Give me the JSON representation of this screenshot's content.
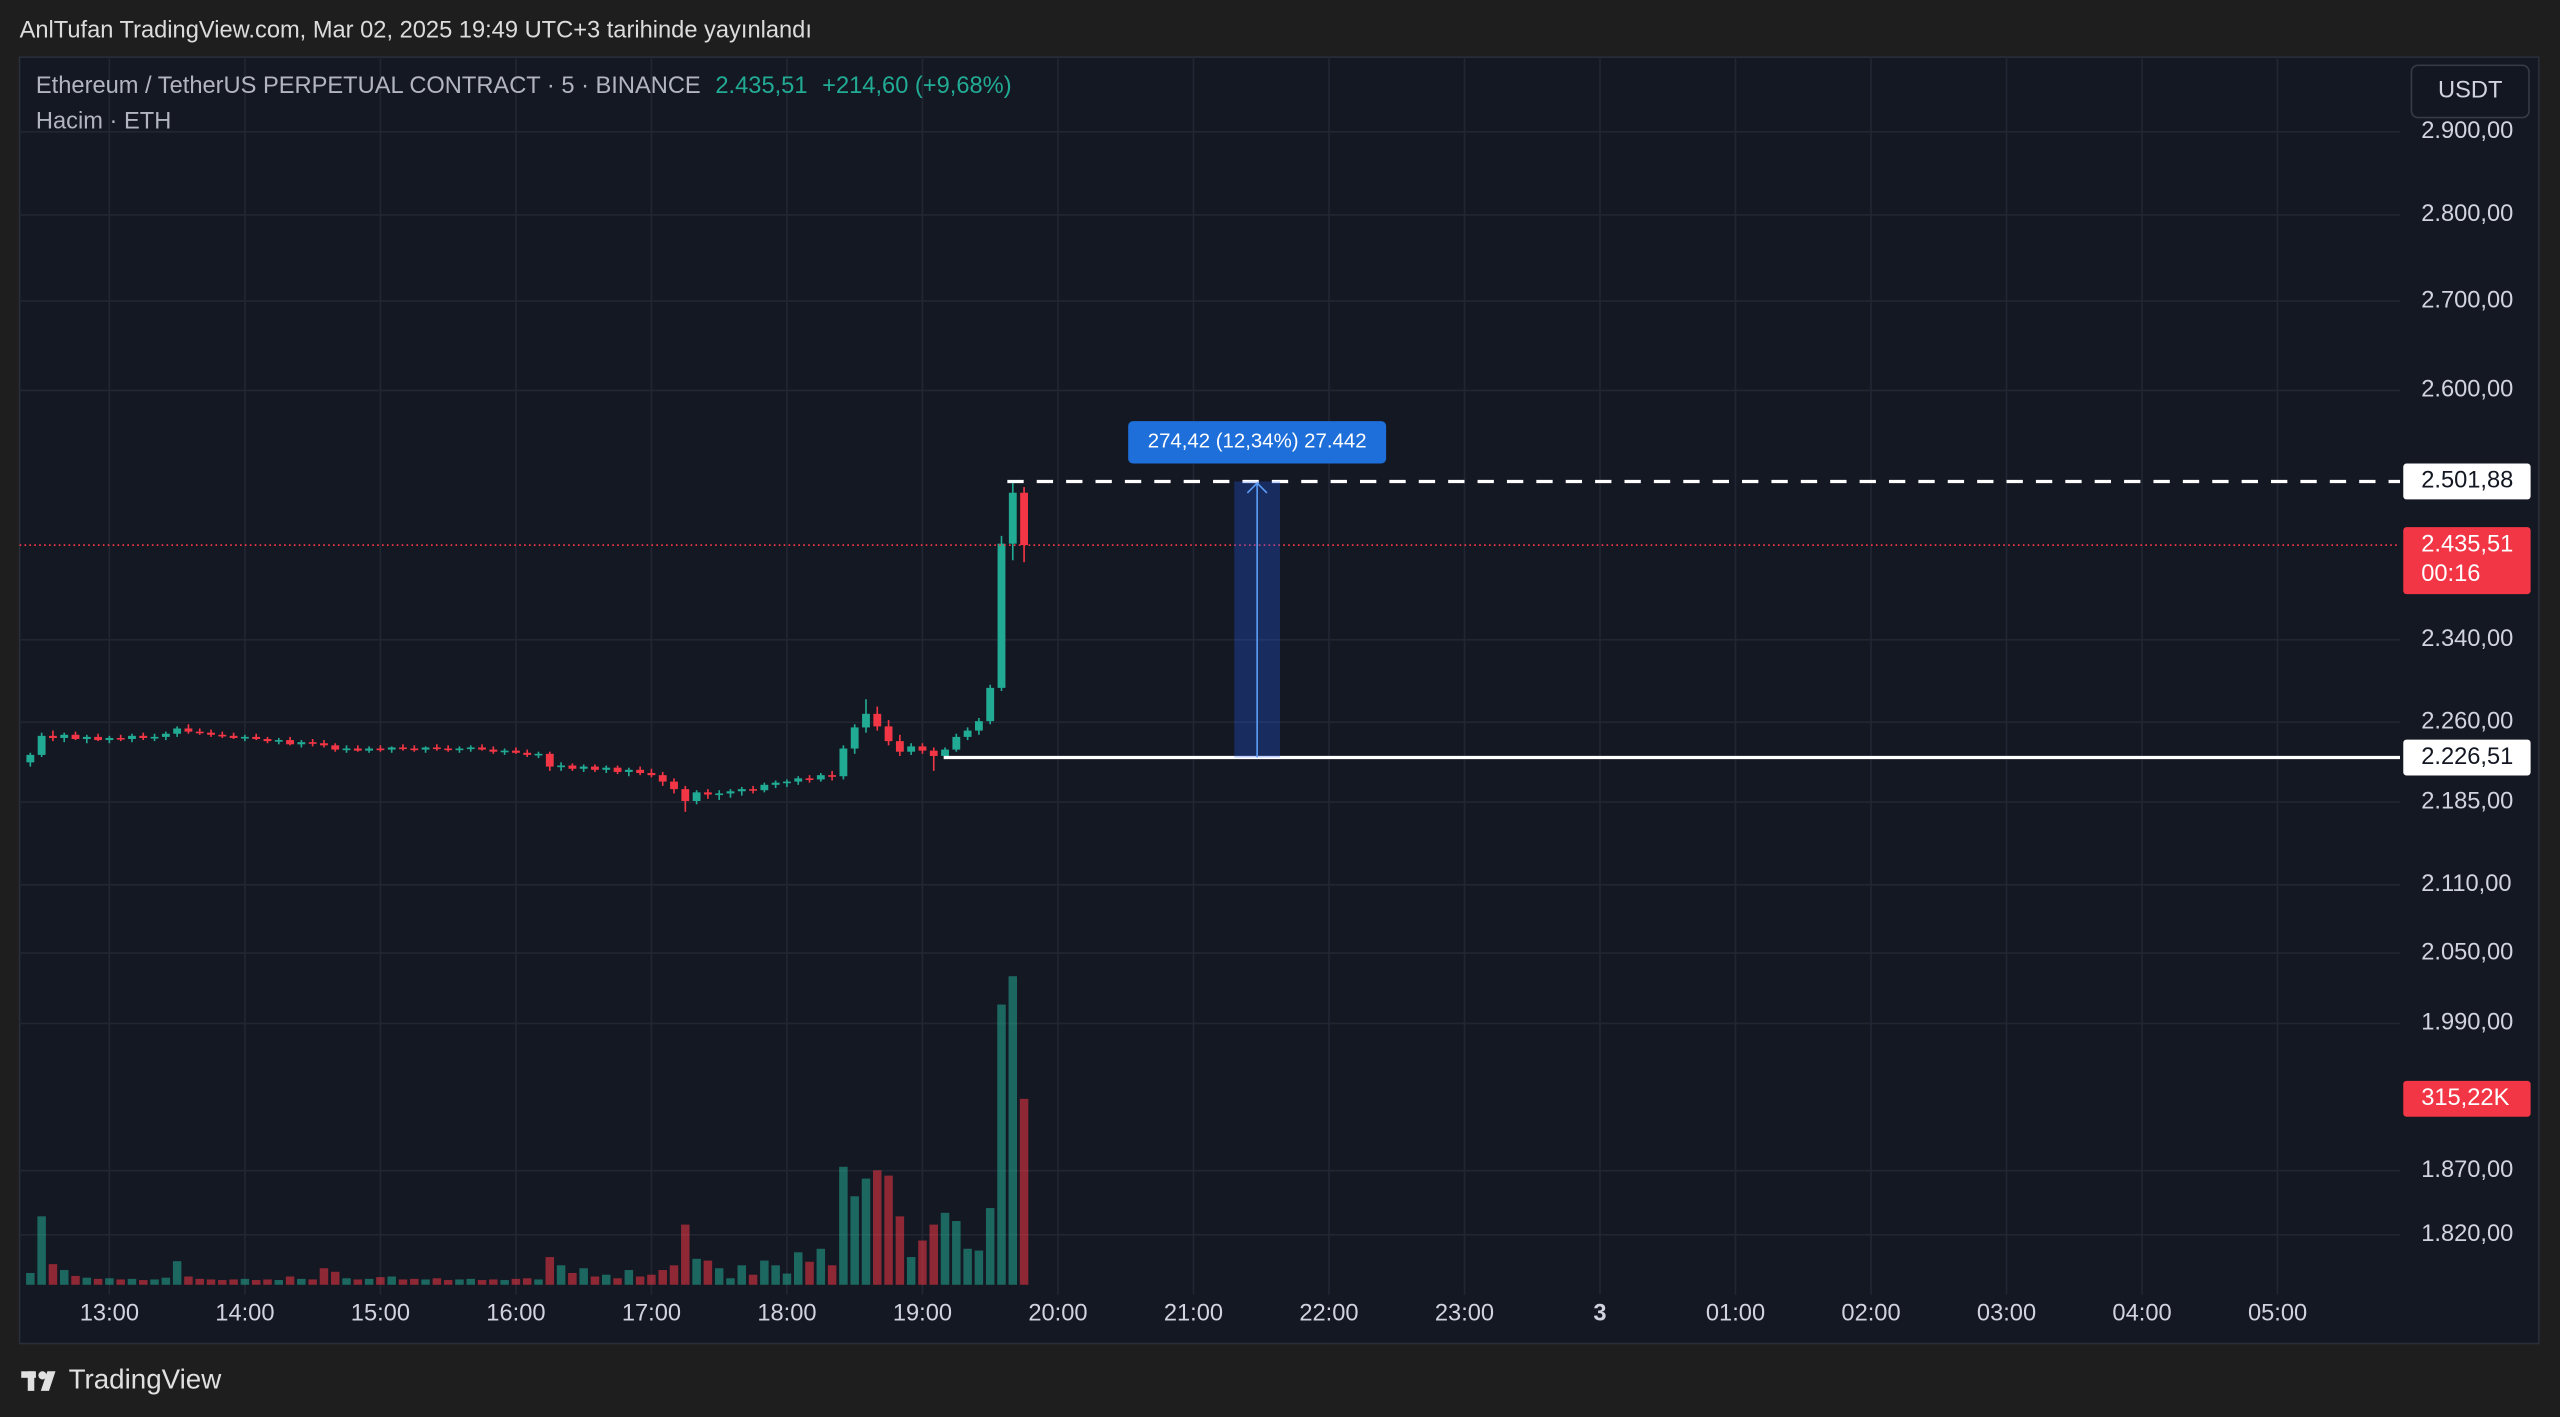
{
  "header": {
    "title": "AnlTufan TradingView.com, Mar 02, 2025 19:49 UTC+3 tarihinde yayınlandı"
  },
  "chart_data": {
    "type": "candlestick",
    "symbol": "Ethereum / TetherUS PERPETUAL CONTRACT · 5 · BINANCE",
    "change": "+214,60 (+9,68%)",
    "volume_legend": "Hacim · ETH",
    "currency": "USDT",
    "x": [
      "12:25",
      "12:30",
      "12:35",
      "12:40",
      "12:45",
      "12:50",
      "12:55",
      "13:00",
      "13:05",
      "13:10",
      "13:15",
      "13:20",
      "13:25",
      "13:30",
      "13:35",
      "13:40",
      "13:45",
      "13:50",
      "13:55",
      "14:00",
      "14:05",
      "14:10",
      "14:15",
      "14:20",
      "14:25",
      "14:30",
      "14:35",
      "14:40",
      "14:45",
      "14:50",
      "14:55",
      "15:00",
      "15:05",
      "15:10",
      "15:15",
      "15:20",
      "15:25",
      "15:30",
      "15:35",
      "15:40",
      "15:45",
      "15:50",
      "15:55",
      "16:00",
      "16:05",
      "16:10",
      "16:15",
      "16:20",
      "16:25",
      "16:30",
      "16:35",
      "16:40",
      "16:45",
      "16:50",
      "16:55",
      "17:00",
      "17:05",
      "17:10",
      "17:15",
      "17:20",
      "17:25",
      "17:30",
      "17:35",
      "17:40",
      "17:45",
      "17:50",
      "17:55",
      "18:00",
      "18:05",
      "18:10",
      "18:15",
      "18:20",
      "18:25",
      "18:30",
      "18:35",
      "18:40",
      "18:45",
      "18:50",
      "18:55",
      "19:00",
      "19:05",
      "19:10",
      "19:15",
      "19:20",
      "19:25",
      "19:30",
      "19:35",
      "19:40",
      "19:45"
    ],
    "open": [
      2222,
      2229,
      2247,
      2245,
      2248,
      2244,
      2246,
      2243,
      2245,
      2244,
      2247,
      2245,
      2246,
      2249,
      2254,
      2251,
      2250,
      2248,
      2247,
      2245,
      2246,
      2244,
      2242,
      2243,
      2239,
      2241,
      2240,
      2238,
      2234,
      2235,
      2233,
      2235,
      2234,
      2236,
      2235,
      2234,
      2236,
      2235,
      2234,
      2235,
      2236,
      2234,
      2232,
      2233,
      2231,
      2229,
      2230,
      2218,
      2219,
      2216,
      2218,
      2215,
      2217,
      2213,
      2215,
      2212,
      2210,
      2204,
      2197,
      2186,
      2194,
      2192,
      2193,
      2195,
      2197,
      2196,
      2201,
      2203,
      2204,
      2207,
      2206,
      2210,
      2209,
      2235,
      2255,
      2268,
      2256,
      2242,
      2232,
      2237,
      2233,
      2228,
      2234,
      2246,
      2252,
      2261,
      2293,
      2437,
      2490
    ],
    "high": [
      2231,
      2250,
      2252,
      2250,
      2251,
      2248,
      2249,
      2247,
      2248,
      2249,
      2250,
      2249,
      2251,
      2256,
      2258,
      2254,
      2253,
      2251,
      2250,
      2248,
      2249,
      2246,
      2245,
      2246,
      2243,
      2244,
      2243,
      2240,
      2238,
      2238,
      2237,
      2238,
      2237,
      2239,
      2238,
      2237,
      2239,
      2238,
      2237,
      2238,
      2239,
      2237,
      2235,
      2236,
      2234,
      2232,
      2232,
      2222,
      2221,
      2220,
      2220,
      2219,
      2219,
      2217,
      2218,
      2216,
      2213,
      2207,
      2200,
      2196,
      2197,
      2196,
      2197,
      2199,
      2200,
      2203,
      2205,
      2206,
      2209,
      2210,
      2212,
      2214,
      2238,
      2258,
      2282,
      2275,
      2262,
      2248,
      2240,
      2240,
      2236,
      2236,
      2249,
      2255,
      2264,
      2296,
      2445,
      2501.88,
      2496
    ],
    "low": [
      2218,
      2227,
      2242,
      2241,
      2243,
      2240,
      2242,
      2240,
      2242,
      2241,
      2243,
      2242,
      2243,
      2246,
      2249,
      2248,
      2246,
      2245,
      2244,
      2242,
      2243,
      2240,
      2239,
      2238,
      2236,
      2237,
      2236,
      2232,
      2231,
      2232,
      2231,
      2232,
      2231,
      2233,
      2232,
      2231,
      2233,
      2232,
      2231,
      2232,
      2233,
      2230,
      2229,
      2230,
      2227,
      2226,
      2214,
      2214,
      2214,
      2213,
      2213,
      2212,
      2211,
      2209,
      2210,
      2208,
      2200,
      2193,
      2176,
      2183,
      2188,
      2187,
      2189,
      2191,
      2193,
      2194,
      2198,
      2199,
      2201,
      2203,
      2204,
      2205,
      2206,
      2230,
      2250,
      2252,
      2238,
      2228,
      2229,
      2230,
      2214,
      2225,
      2232,
      2243,
      2248,
      2258,
      2290,
      2420,
      2418
    ],
    "close": [
      2229,
      2247,
      2245,
      2248,
      2244,
      2246,
      2243,
      2245,
      2244,
      2247,
      2245,
      2246,
      2249,
      2254,
      2251,
      2250,
      2248,
      2247,
      2245,
      2246,
      2244,
      2242,
      2243,
      2239,
      2241,
      2240,
      2238,
      2234,
      2235,
      2233,
      2235,
      2234,
      2236,
      2235,
      2234,
      2236,
      2235,
      2234,
      2235,
      2236,
      2234,
      2232,
      2233,
      2231,
      2229,
      2230,
      2218,
      2219,
      2216,
      2218,
      2215,
      2217,
      2213,
      2215,
      2212,
      2210,
      2204,
      2197,
      2186,
      2194,
      2192,
      2193,
      2195,
      2197,
      2196,
      2201,
      2203,
      2204,
      2207,
      2206,
      2210,
      2209,
      2235,
      2255,
      2268,
      2256,
      2242,
      2232,
      2237,
      2233,
      2228,
      2234,
      2246,
      2252,
      2261,
      2293,
      2437,
      2490,
      2435.51
    ],
    "volume": [
      20000,
      116000,
      35000,
      25000,
      15000,
      12000,
      10000,
      11000,
      9000,
      10000,
      8000,
      9000,
      12000,
      40000,
      14000,
      10000,
      9000,
      8000,
      9000,
      10000,
      8000,
      9000,
      8000,
      14000,
      10000,
      9000,
      28000,
      22000,
      11000,
      9000,
      10000,
      13000,
      14000,
      9000,
      10000,
      9000,
      11000,
      8000,
      9000,
      10000,
      8000,
      9000,
      8000,
      10000,
      11000,
      9000,
      47000,
      33000,
      20000,
      28000,
      14000,
      17000,
      11000,
      25000,
      14000,
      17000,
      25000,
      33000,
      102000,
      44000,
      41000,
      28000,
      11000,
      33000,
      17000,
      41000,
      33000,
      19000,
      55000,
      39000,
      61000,
      33000,
      200000,
      150000,
      180000,
      194000,
      185000,
      116000,
      47000,
      75000,
      102000,
      122000,
      108000,
      61000,
      58000,
      130000,
      475000,
      523000,
      315220
    ],
    "volume_last_label": "315,22K",
    "log_scale": true,
    "ylim": [
      1782,
      2993
    ],
    "yticks": [
      {
        "value": 2900,
        "label": "2.900,00"
      },
      {
        "value": 2800,
        "label": "2.800,00"
      },
      {
        "value": 2700,
        "label": "2.700,00"
      },
      {
        "value": 2600,
        "label": "2.600,00"
      },
      {
        "value": 2340,
        "label": "2.340,00"
      },
      {
        "value": 2260,
        "label": "2.260,00"
      },
      {
        "value": 2185,
        "label": "2.185,00"
      },
      {
        "value": 2110,
        "label": "2.110,00"
      },
      {
        "value": 2050,
        "label": "2.050,00"
      },
      {
        "value": 1990,
        "label": "1.990,00"
      },
      {
        "value": 1870,
        "label": "1.870,00"
      },
      {
        "value": 1820,
        "label": "1.820,00"
      }
    ],
    "xtick_labels": [
      "13:00",
      "14:00",
      "15:00",
      "16:00",
      "17:00",
      "18:00",
      "19:00",
      "20:00",
      "21:00",
      "22:00",
      "23:00",
      "3",
      "01:00",
      "02:00",
      "03:00",
      "04:00",
      "05:00"
    ],
    "price_lines": [
      {
        "value": 2501.88,
        "label": "2.501,88",
        "style": "dashed"
      },
      {
        "value": 2226.51,
        "label": "2.226,51",
        "style": "solid"
      }
    ],
    "last": {
      "value": 2435.51,
      "label": "2.435,51",
      "countdown": "00:16"
    },
    "measure_label": "274,42 (12,34%) 27.442",
    "grid": true,
    "colors": {
      "up": "#22ab94",
      "down": "#f23645",
      "measure": "#2962ff"
    }
  },
  "footer": {
    "brand": "TradingView"
  }
}
